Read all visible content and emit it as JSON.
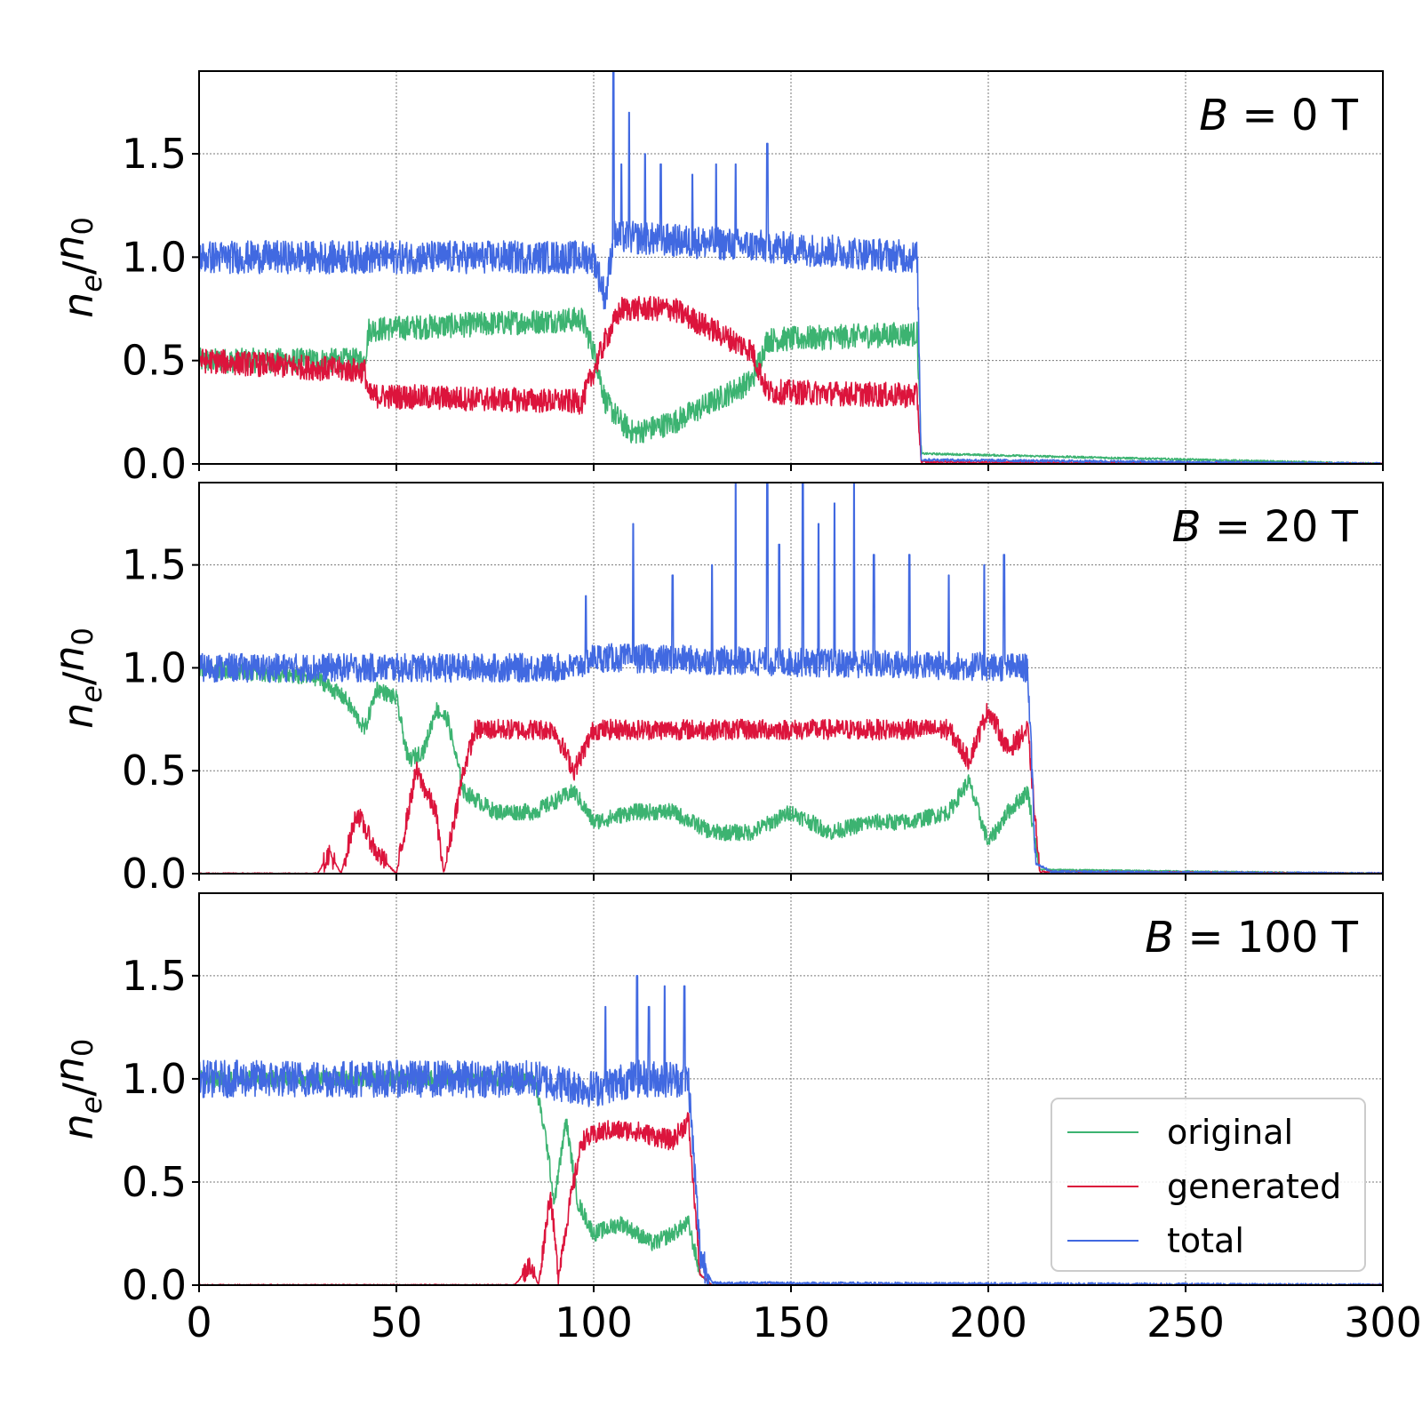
{
  "chart_data": {
    "type": "line",
    "shared_x": {
      "xlim": [
        0,
        300
      ],
      "xticks": [
        0,
        50,
        100,
        150,
        200,
        250,
        300
      ],
      "xtick_labels": [
        "0",
        "50",
        "100",
        "150",
        "200",
        "250",
        "300"
      ],
      "xlabel": ""
    },
    "grid": true,
    "legend": {
      "placement": "lower-right of bottom panel",
      "entries": [
        {
          "name": "original",
          "color": "#3cb371"
        },
        {
          "name": "generated",
          "color": "#dc143c"
        },
        {
          "name": "total",
          "color": "#4169e1"
        }
      ]
    },
    "ylabel": {
      "base": "n",
      "base_sub": "e",
      "slash": "/",
      "ref": "n",
      "ref_sub": "0"
    },
    "panels": [
      {
        "label": {
          "var": "B",
          "eq": " = ",
          "value": "0",
          "unit": " T"
        },
        "ylim": [
          0,
          1.9
        ],
        "yticks": [
          0.0,
          0.5,
          1.0,
          1.5
        ],
        "ytick_labels": [
          "0.0",
          "0.5",
          "1.0",
          "1.5"
        ],
        "series": [
          {
            "name": "original",
            "color": "#3cb371",
            "noise": 0.06,
            "segments": [
              [
                0,
                0.5
              ],
              [
                42,
                0.5
              ],
              [
                43,
                0.65
              ],
              [
                97,
                0.7
              ],
              [
                100,
                0.55
              ],
              [
                103,
                0.3
              ],
              [
                107,
                0.2
              ],
              [
                110,
                0.15
              ],
              [
                120,
                0.2
              ],
              [
                130,
                0.3
              ],
              [
                140,
                0.4
              ],
              [
                144,
                0.6
              ],
              [
                182,
                0.63
              ],
              [
                183,
                0.05
              ],
              [
                300,
                0.0
              ]
            ]
          },
          {
            "name": "generated",
            "color": "#dc143c",
            "noise": 0.06,
            "segments": [
              [
                0,
                0.5
              ],
              [
                42,
                0.45
              ],
              [
                43,
                0.33
              ],
              [
                97,
                0.3
              ],
              [
                100,
                0.45
              ],
              [
                103,
                0.6
              ],
              [
                107,
                0.75
              ],
              [
                120,
                0.75
              ],
              [
                130,
                0.65
              ],
              [
                140,
                0.55
              ],
              [
                144,
                0.35
              ],
              [
                182,
                0.33
              ],
              [
                183,
                0.01
              ],
              [
                300,
                0.0
              ]
            ]
          },
          {
            "name": "total",
            "color": "#4169e1",
            "noise": 0.08,
            "segments": [
              [
                0,
                1.0
              ],
              [
                100,
                1.0
              ],
              [
                103,
                0.8
              ],
              [
                105,
                1.1
              ],
              [
                144,
                1.05
              ],
              [
                182,
                1.0
              ],
              [
                183,
                0.02
              ],
              [
                300,
                0.0
              ]
            ],
            "spikes": [
              [
                105,
                1.9
              ],
              [
                107,
                1.45
              ],
              [
                109,
                1.7
              ],
              [
                113,
                1.5
              ],
              [
                117,
                1.45
              ],
              [
                125,
                1.4
              ],
              [
                131,
                1.45
              ],
              [
                136,
                1.45
              ],
              [
                144,
                1.55
              ]
            ]
          }
        ]
      },
      {
        "label": {
          "var": "B",
          "eq": " = ",
          "value": "20",
          "unit": " T"
        },
        "ylim": [
          0,
          1.9
        ],
        "yticks": [
          0.0,
          0.5,
          1.0,
          1.5
        ],
        "ytick_labels": [
          "0.0",
          "0.5",
          "1.0",
          "1.5"
        ],
        "series": [
          {
            "name": "original",
            "color": "#3cb371",
            "noise": 0.04,
            "segments": [
              [
                0,
                1.0
              ],
              [
                30,
                0.95
              ],
              [
                37,
                0.85
              ],
              [
                42,
                0.7
              ],
              [
                45,
                0.9
              ],
              [
                50,
                0.85
              ],
              [
                53,
                0.55
              ],
              [
                57,
                0.6
              ],
              [
                60,
                0.8
              ],
              [
                63,
                0.75
              ],
              [
                67,
                0.4
              ],
              [
                75,
                0.3
              ],
              [
                85,
                0.3
              ],
              [
                95,
                0.4
              ],
              [
                100,
                0.25
              ],
              [
                110,
                0.3
              ],
              [
                120,
                0.3
              ],
              [
                130,
                0.2
              ],
              [
                140,
                0.2
              ],
              [
                150,
                0.3
              ],
              [
                160,
                0.2
              ],
              [
                170,
                0.25
              ],
              [
                180,
                0.25
              ],
              [
                190,
                0.3
              ],
              [
                195,
                0.45
              ],
              [
                200,
                0.15
              ],
              [
                205,
                0.3
              ],
              [
                210,
                0.4
              ],
              [
                213,
                0.02
              ],
              [
                300,
                0.0
              ]
            ]
          },
          {
            "name": "generated",
            "color": "#dc143c",
            "noise": 0.05,
            "segments": [
              [
                0,
                0.0
              ],
              [
                30,
                0.0
              ],
              [
                33,
                0.1
              ],
              [
                36,
                0.0
              ],
              [
                40,
                0.3
              ],
              [
                45,
                0.1
              ],
              [
                50,
                0.0
              ],
              [
                55,
                0.5
              ],
              [
                60,
                0.3
              ],
              [
                62,
                0.0
              ],
              [
                67,
                0.5
              ],
              [
                70,
                0.7
              ],
              [
                90,
                0.7
              ],
              [
                95,
                0.5
              ],
              [
                100,
                0.7
              ],
              [
                150,
                0.7
              ],
              [
                190,
                0.7
              ],
              [
                195,
                0.55
              ],
              [
                200,
                0.8
              ],
              [
                205,
                0.6
              ],
              [
                210,
                0.7
              ],
              [
                213,
                0.01
              ],
              [
                300,
                0.0
              ]
            ]
          },
          {
            "name": "total",
            "color": "#4169e1",
            "noise": 0.07,
            "segments": [
              [
                0,
                1.0
              ],
              [
                95,
                1.0
              ],
              [
                100,
                1.05
              ],
              [
                210,
                1.0
              ],
              [
                212,
                0.05
              ],
              [
                216,
                0.01
              ],
              [
                300,
                0.0
              ]
            ],
            "spikes": [
              [
                98,
                1.35
              ],
              [
                110,
                1.7
              ],
              [
                120,
                1.45
              ],
              [
                130,
                1.5
              ],
              [
                136,
                1.9
              ],
              [
                144,
                1.9
              ],
              [
                147,
                1.6
              ],
              [
                153,
                1.9
              ],
              [
                157,
                1.7
              ],
              [
                161,
                1.8
              ],
              [
                166,
                1.9
              ],
              [
                171,
                1.55
              ],
              [
                180,
                1.55
              ],
              [
                190,
                1.45
              ],
              [
                199,
                1.5
              ],
              [
                204,
                1.55
              ]
            ]
          }
        ]
      },
      {
        "label": {
          "var": "B",
          "eq": " = ",
          "value": "100",
          "unit": " T"
        },
        "ylim": [
          0,
          1.9
        ],
        "yticks": [
          0.0,
          0.5,
          1.0,
          1.5
        ],
        "ytick_labels": [
          "0.0",
          "0.5",
          "1.0",
          "1.5"
        ],
        "series": [
          {
            "name": "original",
            "color": "#3cb371",
            "noise": 0.04,
            "segments": [
              [
                0,
                1.0
              ],
              [
                85,
                1.0
              ],
              [
                88,
                0.7
              ],
              [
                90,
                0.4
              ],
              [
                93,
                0.8
              ],
              [
                96,
                0.4
              ],
              [
                100,
                0.25
              ],
              [
                107,
                0.3
              ],
              [
                115,
                0.2
              ],
              [
                120,
                0.25
              ],
              [
                124,
                0.3
              ],
              [
                127,
                0.05
              ],
              [
                130,
                0.0
              ],
              [
                300,
                0.0
              ]
            ]
          },
          {
            "name": "generated",
            "color": "#dc143c",
            "noise": 0.05,
            "segments": [
              [
                0,
                0.0
              ],
              [
                80,
                0.0
              ],
              [
                84,
                0.1
              ],
              [
                86,
                0.0
              ],
              [
                89,
                0.45
              ],
              [
                91,
                0.05
              ],
              [
                94,
                0.4
              ],
              [
                97,
                0.7
              ],
              [
                103,
                0.75
              ],
              [
                110,
                0.75
              ],
              [
                120,
                0.7
              ],
              [
                124,
                0.8
              ],
              [
                127,
                0.05
              ],
              [
                130,
                0.0
              ],
              [
                300,
                0.0
              ]
            ]
          },
          {
            "name": "total",
            "color": "#4169e1",
            "noise": 0.09,
            "segments": [
              [
                0,
                1.0
              ],
              [
                85,
                1.0
              ],
              [
                100,
                0.95
              ],
              [
                110,
                1.0
              ],
              [
                124,
                1.0
              ],
              [
                127,
                0.15
              ],
              [
                130,
                0.01
              ],
              [
                300,
                0.0
              ]
            ],
            "spikes": [
              [
                103,
                1.35
              ],
              [
                111,
                1.5
              ],
              [
                114,
                1.35
              ],
              [
                118,
                1.45
              ],
              [
                123,
                1.45
              ]
            ]
          }
        ]
      }
    ]
  }
}
